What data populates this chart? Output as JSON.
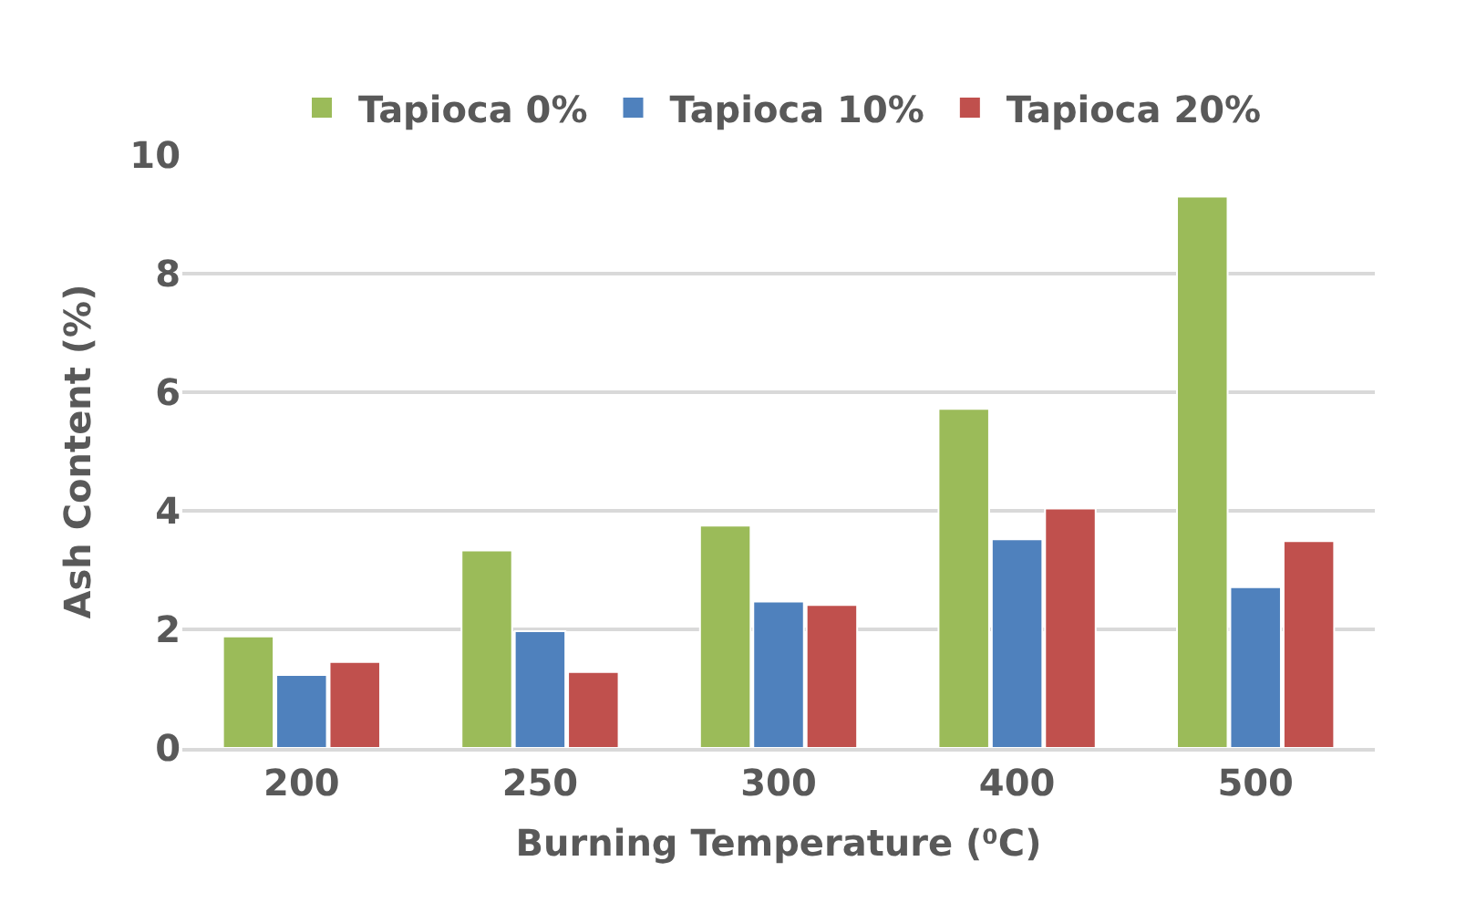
{
  "chart_data": {
    "type": "bar",
    "categories": [
      "200",
      "250",
      "300",
      "400",
      "500"
    ],
    "series": [
      {
        "name": "Tapioca 0%",
        "color": "#9bbb59",
        "values": [
          1.88,
          3.33,
          3.75,
          5.72,
          9.3
        ]
      },
      {
        "name": "Tapioca 10%",
        "color": "#4f81bd",
        "values": [
          1.23,
          1.97,
          2.47,
          3.52,
          2.71
        ]
      },
      {
        "name": "Tapioca 20%",
        "color": "#c0504d",
        "values": [
          1.45,
          1.28,
          2.41,
          4.04,
          3.49
        ]
      }
    ],
    "xlabel": "Burning Temperature (⁰C)",
    "ylabel": "Ash Content (%)",
    "ylim": [
      0,
      10
    ],
    "yticks": [
      0,
      2,
      4,
      6,
      8,
      10
    ],
    "grid": "y",
    "legend": "top"
  }
}
